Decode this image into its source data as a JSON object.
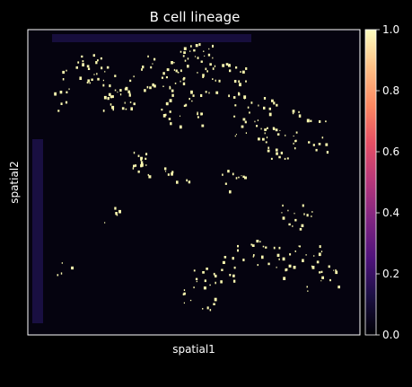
{
  "chart_data": {
    "type": "heatmap",
    "title": "B cell lineage",
    "xlabel": "spatial1",
    "ylabel": "spatial2",
    "colormap": "magma",
    "colorbar": {
      "vmin": 0.0,
      "vmax": 1.0,
      "ticks": [
        0.0,
        0.2,
        0.4,
        0.6,
        0.8,
        1.0
      ],
      "tick_labels": [
        "0.0",
        "0.2",
        "0.4",
        "0.6",
        "0.8",
        "1.0"
      ],
      "placement": "right"
    },
    "grid": false,
    "background_color": "#000000",
    "panel_color": "#05030f",
    "edge_strip_color": "#2a1a6b",
    "spot_color": "#fcf9b0"
  }
}
